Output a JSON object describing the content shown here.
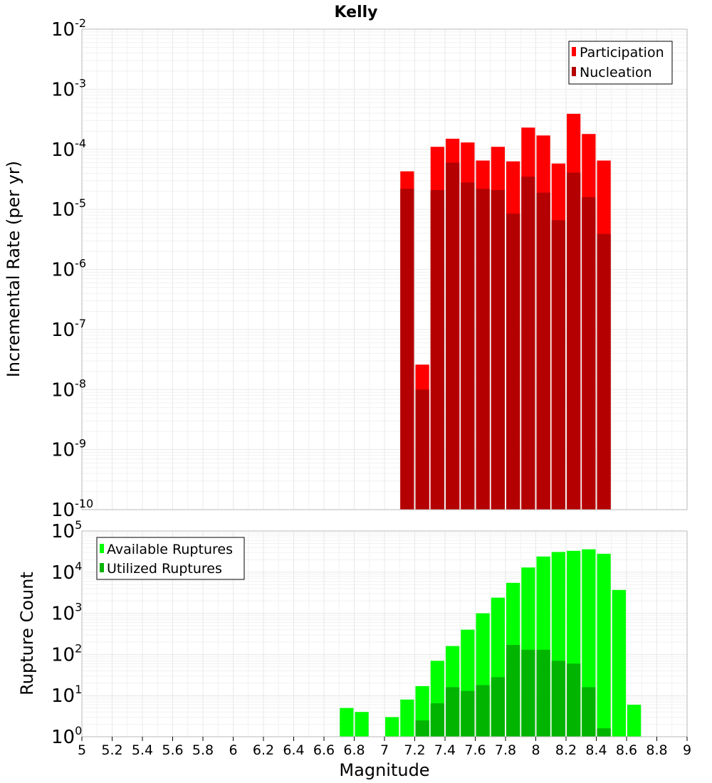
{
  "chart_data": [
    {
      "type": "bar",
      "title": "Kelly",
      "xlabel": "Magnitude",
      "ylabel": "Incremental Rate (per yr)",
      "yscale": "log",
      "ylim_exp": [
        -10,
        -2
      ],
      "xlim": [
        5,
        9
      ],
      "bin_width": 0.1,
      "legend_position": "top-right",
      "series": [
        {
          "name": "Participation",
          "color": "#ff0000",
          "x": [
            7.15,
            7.25,
            7.35,
            7.45,
            7.55,
            7.65,
            7.75,
            7.85,
            7.95,
            8.05,
            8.15,
            8.25,
            8.35,
            8.45
          ],
          "values": [
            4.3e-05,
            2.6e-08,
            0.00011,
            0.00015,
            0.00013,
            6.5e-05,
            0.00011,
            6.3e-05,
            0.00023,
            0.00017,
            5.8e-05,
            0.00039,
            0.00018,
            6.5e-05
          ]
        },
        {
          "name": "Nucleation",
          "color": "#b40000",
          "x": [
            7.15,
            7.25,
            7.35,
            7.45,
            7.55,
            7.65,
            7.75,
            7.85,
            7.95,
            8.05,
            8.15,
            8.25,
            8.35,
            8.45
          ],
          "values": [
            2.2e-05,
            1e-08,
            2.1e-05,
            6e-05,
            2.8e-05,
            2.2e-05,
            2.1e-05,
            8.5e-06,
            3.5e-05,
            1.9e-05,
            6.6e-06,
            4.1e-05,
            1.6e-05,
            3.9e-06
          ]
        }
      ]
    },
    {
      "type": "bar",
      "title": "",
      "xlabel": "Magnitude",
      "ylabel": "Rupture Count",
      "yscale": "log",
      "ylim_exp": [
        0,
        5
      ],
      "xlim": [
        5,
        9
      ],
      "bin_width": 0.1,
      "legend_position": "top-left",
      "series": [
        {
          "name": "Available Ruptures",
          "color": "#00ff00",
          "x": [
            6.75,
            6.85,
            7.05,
            7.15,
            7.25,
            7.35,
            7.45,
            7.55,
            7.65,
            7.75,
            7.85,
            7.95,
            8.05,
            8.15,
            8.25,
            8.35,
            8.45,
            8.55,
            8.65
          ],
          "values": [
            5,
            4,
            3,
            8,
            17,
            70,
            160,
            400,
            1000,
            2400,
            5500,
            13000,
            24000,
            31000,
            33000,
            36000,
            28000,
            3700,
            6
          ]
        },
        {
          "name": "Utilized Ruptures",
          "color": "#00b400",
          "x": [
            7.15,
            7.25,
            7.35,
            7.45,
            7.55,
            7.65,
            7.75,
            7.85,
            7.95,
            8.05,
            8.15,
            8.25,
            8.35,
            8.45
          ],
          "values": [
            1,
            2.5,
            6.5,
            16,
            13,
            18,
            28,
            170,
            130,
            130,
            70,
            60,
            16,
            1.6
          ]
        }
      ]
    }
  ],
  "x_ticks": [
    "5",
    "5.2",
    "5.4",
    "5.6",
    "5.8",
    "6",
    "6.2",
    "6.4",
    "6.6",
    "6.8",
    "7",
    "7.2",
    "7.4",
    "7.6",
    "7.8",
    "8",
    "8.2",
    "8.4",
    "8.6",
    "8.8",
    "9"
  ],
  "top_exponents": [
    "-10",
    "-9",
    "-8",
    "-7",
    "-6",
    "-5",
    "-4",
    "-3",
    "-2"
  ],
  "bottom_exponents": [
    "0",
    "1",
    "2",
    "3",
    "4",
    "5"
  ],
  "tick_base": "10"
}
